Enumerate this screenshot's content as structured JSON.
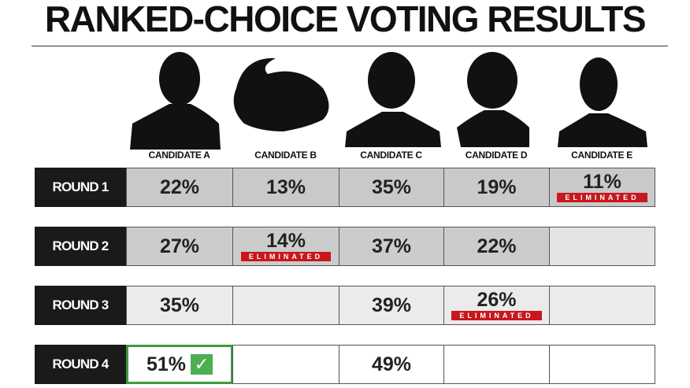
{
  "title": "RANKED-CHOICE VOTING RESULTS",
  "candidates": [
    "CANDIDATE A",
    "CANDIDATE B",
    "CANDIDATE C",
    "CANDIDATE D",
    "CANDIDATE E"
  ],
  "rounds": [
    {
      "label": "ROUND 1",
      "cells": [
        {
          "text": "22%"
        },
        {
          "text": "13%"
        },
        {
          "text": "35%"
        },
        {
          "text": "19%"
        },
        {
          "text": "11%",
          "badge": "ELIMINATED"
        }
      ]
    },
    {
      "label": "ROUND 2",
      "cells": [
        {
          "text": "27%"
        },
        {
          "text": "14%",
          "badge": "ELIMINATED"
        },
        {
          "text": "37%"
        },
        {
          "text": "22%"
        },
        null
      ]
    },
    {
      "label": "ROUND 3",
      "cells": [
        {
          "text": "35%"
        },
        null,
        {
          "text": "39%"
        },
        {
          "text": "26%",
          "badge": "ELIMINATED"
        },
        null
      ]
    },
    {
      "label": "ROUND 4",
      "cells": [
        {
          "text": "51%",
          "winner": true
        },
        null,
        {
          "text": "49%"
        },
        null,
        null
      ]
    }
  ]
}
